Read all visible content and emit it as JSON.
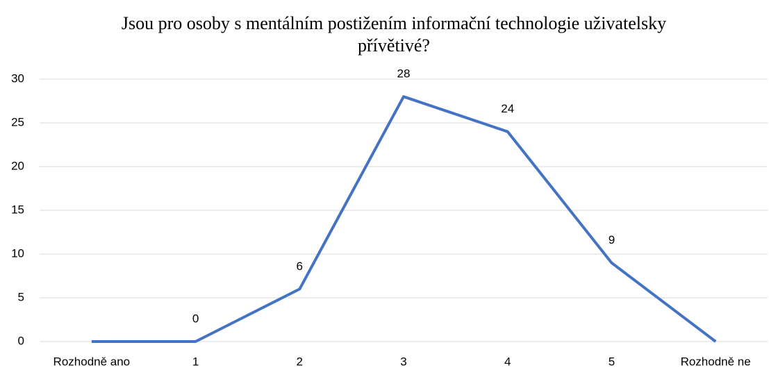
{
  "chart_data": {
    "type": "line",
    "title": "Jsou pro osoby s mentálním postižením informační technologie uživatelsky přívětivé?",
    "categories": [
      "Rozhodně ano",
      "1",
      "2",
      "3",
      "4",
      "5",
      "Rozhodně ne"
    ],
    "values": [
      0,
      0,
      6,
      28,
      24,
      9,
      0
    ],
    "value_labels": [
      null,
      "0",
      "6",
      "28",
      "24",
      "9",
      null
    ],
    "color": "#4472c4",
    "ylim": [
      0,
      30
    ],
    "yticks": [
      0,
      5,
      10,
      15,
      20,
      25,
      30
    ],
    "grid": true
  }
}
